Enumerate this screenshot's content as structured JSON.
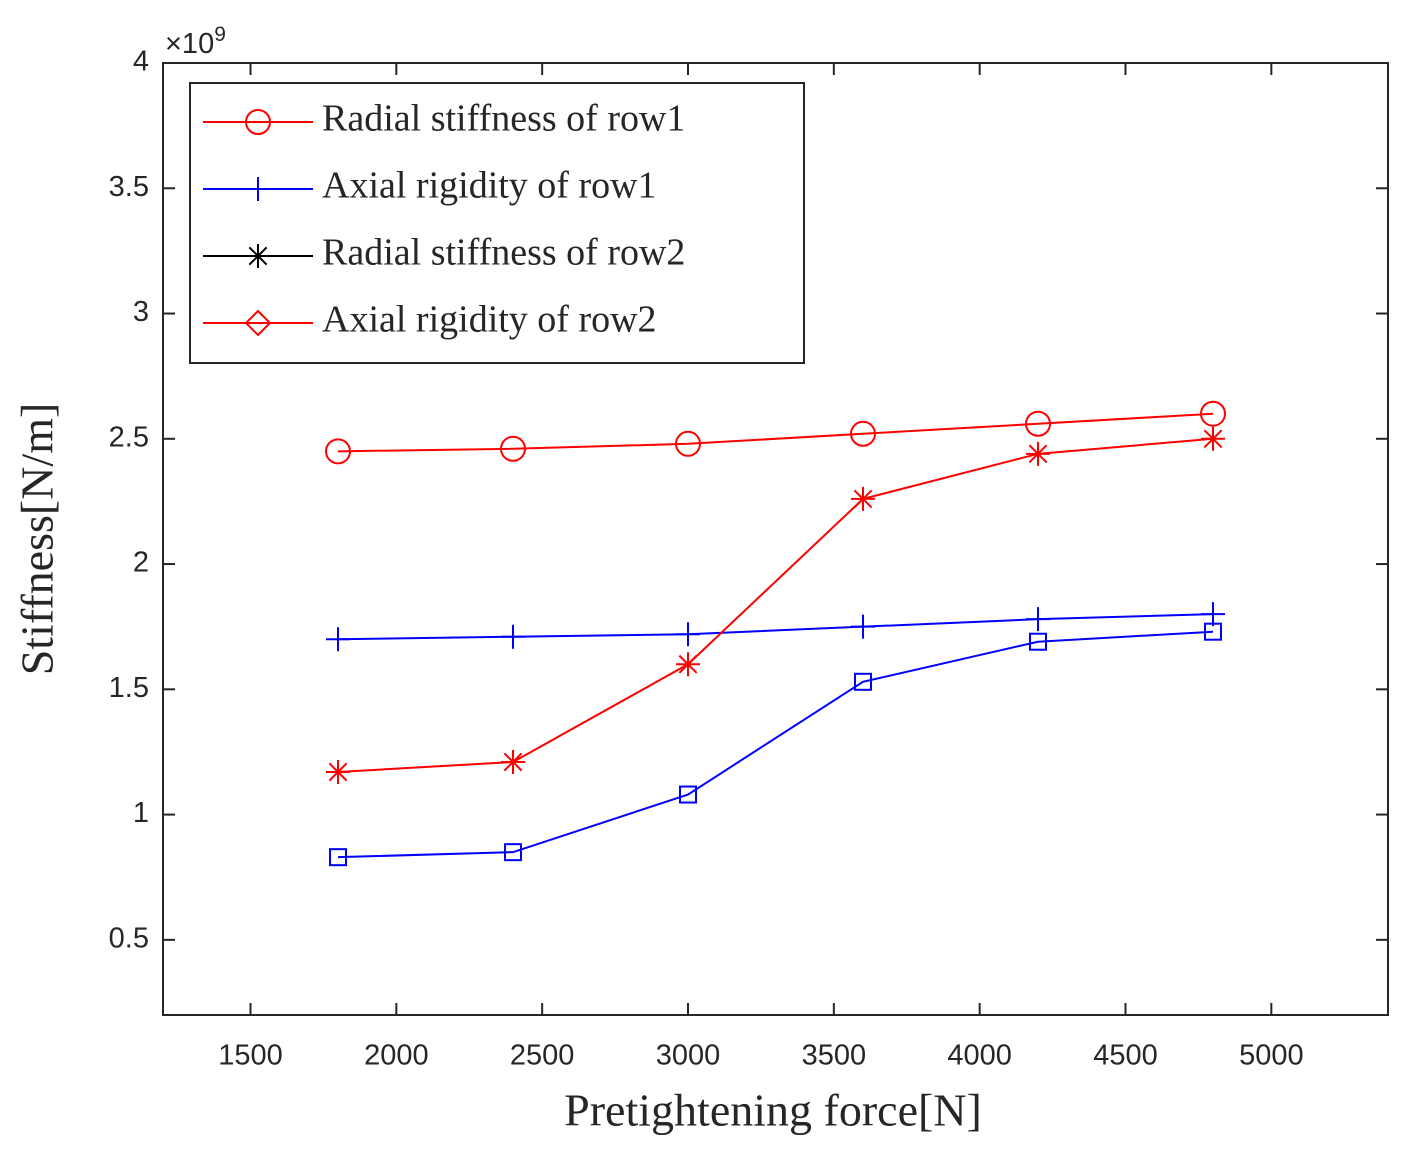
{
  "chart_data": {
    "type": "line",
    "x_label": "Pretightening force[N]",
    "y_label": "Stiffness[N/m]",
    "y_multiplier": {
      "base": "×10",
      "exponent": "9"
    },
    "xlim": [
      1200,
      5400
    ],
    "ylim": [
      0.2,
      4
    ],
    "xticks": [
      1500,
      2000,
      2500,
      3000,
      3500,
      4000,
      4500,
      5000
    ],
    "yticks": [
      0.5,
      1,
      1.5,
      2,
      2.5,
      3,
      3.5,
      4
    ],
    "grid": false,
    "legend_position": "upper left",
    "x": [
      1800,
      2400,
      3000,
      3600,
      4200,
      4800
    ],
    "series": [
      {
        "name": "Radial stiffness of row1",
        "color": "#ff0000",
        "marker": "circle",
        "legend_color": "#ff0000",
        "legend_marker": "circle",
        "values": [
          2.45,
          2.46,
          2.48,
          2.52,
          2.56,
          2.6
        ]
      },
      {
        "name": "Axial rigidity of row1",
        "color": "#0000ff",
        "marker": "plus",
        "legend_color": "#0000ff",
        "legend_marker": "plus",
        "values": [
          1.7,
          1.71,
          1.72,
          1.75,
          1.78,
          1.8
        ]
      },
      {
        "name": "Radial stiffness of row2",
        "color": "#ff0000",
        "marker": "star",
        "legend_color": "#000000",
        "legend_marker": "star",
        "values": [
          1.17,
          1.21,
          1.6,
          2.26,
          2.44,
          2.5
        ]
      },
      {
        "name": "Axial rigidity of row2",
        "color": "#0000ff",
        "marker": "square",
        "legend_color": "#ff0000",
        "legend_marker": "diamond",
        "values": [
          0.83,
          0.85,
          1.08,
          1.53,
          1.69,
          1.73
        ]
      }
    ]
  }
}
